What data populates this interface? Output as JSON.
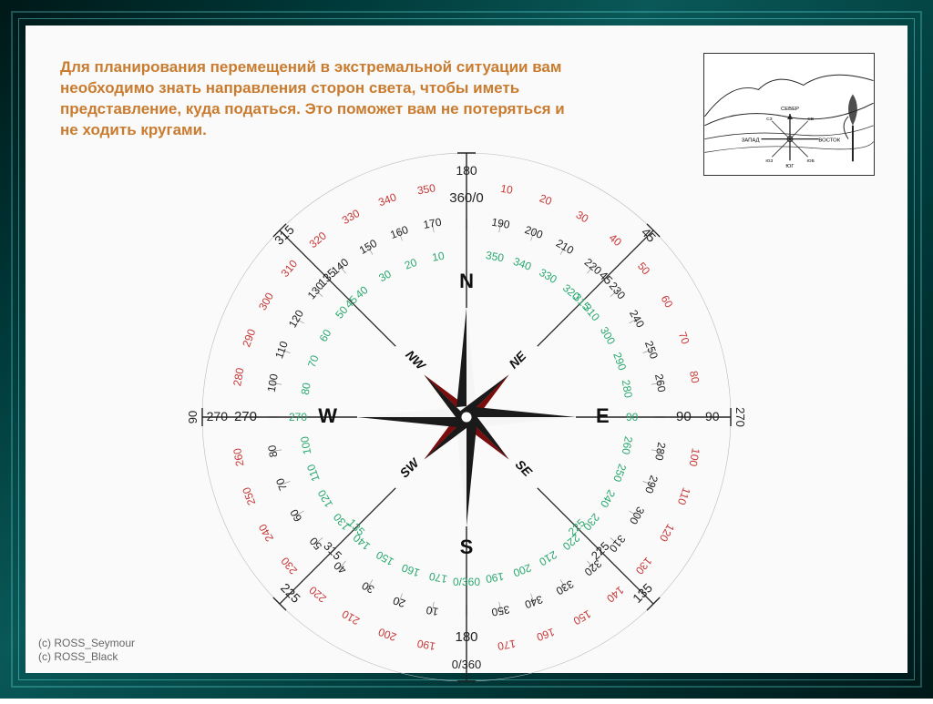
{
  "headline_text": "Для планирования перемещений в экстремальной ситуации вам необходимо знать направления сторон света, чтобы иметь представление, куда податься. Это поможет вам не потеряться и не ходить кругами.",
  "headline_color": "#c97c2f",
  "credits": {
    "line1": "(c) ROSS_Seymour",
    "line2": "(c) ROSS_Black"
  },
  "compass": {
    "center_label": "360/0",
    "bottom_inner_label": "0/360",
    "cardinal": [
      {
        "label": "N",
        "deg": 0
      },
      {
        "label": "E",
        "deg": 90
      },
      {
        "label": "S",
        "deg": 180
      },
      {
        "label": "W",
        "deg": 270
      }
    ],
    "intercardinal": [
      {
        "label": "NE",
        "deg": 45
      },
      {
        "label": "SE",
        "deg": 135
      },
      {
        "label": "SW",
        "deg": 225
      },
      {
        "label": "NW",
        "deg": 315
      }
    ],
    "rose_main_color": "#1a1a1a",
    "rose_accent_color": "#c01818",
    "outer_ring_label_color": "#c83838",
    "green_ring_label_color": "#2aa86f",
    "black_ring_label_color": "#222222",
    "radii": {
      "r_outer": 290,
      "r_red": 250,
      "r_inner_black": 212,
      "r_green": 175,
      "r_rose": 120
    },
    "intercardinal_beams": [
      45,
      135,
      225,
      315
    ],
    "beam_readouts": {
      "45": {
        "outer": "45",
        "black": "45",
        "green": "315"
      },
      "135": {
        "outer": "135",
        "black": "225",
        "green": "225"
      },
      "225": {
        "outer": "225",
        "black": "315",
        "green": "135"
      },
      "315": {
        "outer": "315",
        "black": "135",
        "green": "45"
      }
    },
    "cardinal_readouts": {
      "0": {
        "black": "360/0",
        "green": "180",
        "red": "180"
      },
      "90": {
        "black": "90",
        "green": "90",
        "red": "270",
        "outer": "90",
        "mirror": "270"
      },
      "180": {
        "black": "180",
        "green": "0/360",
        "red": "0/360"
      },
      "270": {
        "black": "270",
        "green": "270",
        "red": "90",
        "outer": "270",
        "mirror": "90"
      }
    },
    "tick_step_deg": 10,
    "font_family": "Arial, sans-serif",
    "font_size_ring": 12,
    "font_size_card": 22,
    "font_size_inter": 14
  },
  "thumb_labels": {
    "n": "СЕВЕР",
    "s": "ЮГ",
    "e": "ВОСТОК",
    "w": "ЗАПАД",
    "ne": "СВ",
    "nw": "СЗ",
    "se": "ЮВ",
    "sw": "ЮЗ"
  }
}
